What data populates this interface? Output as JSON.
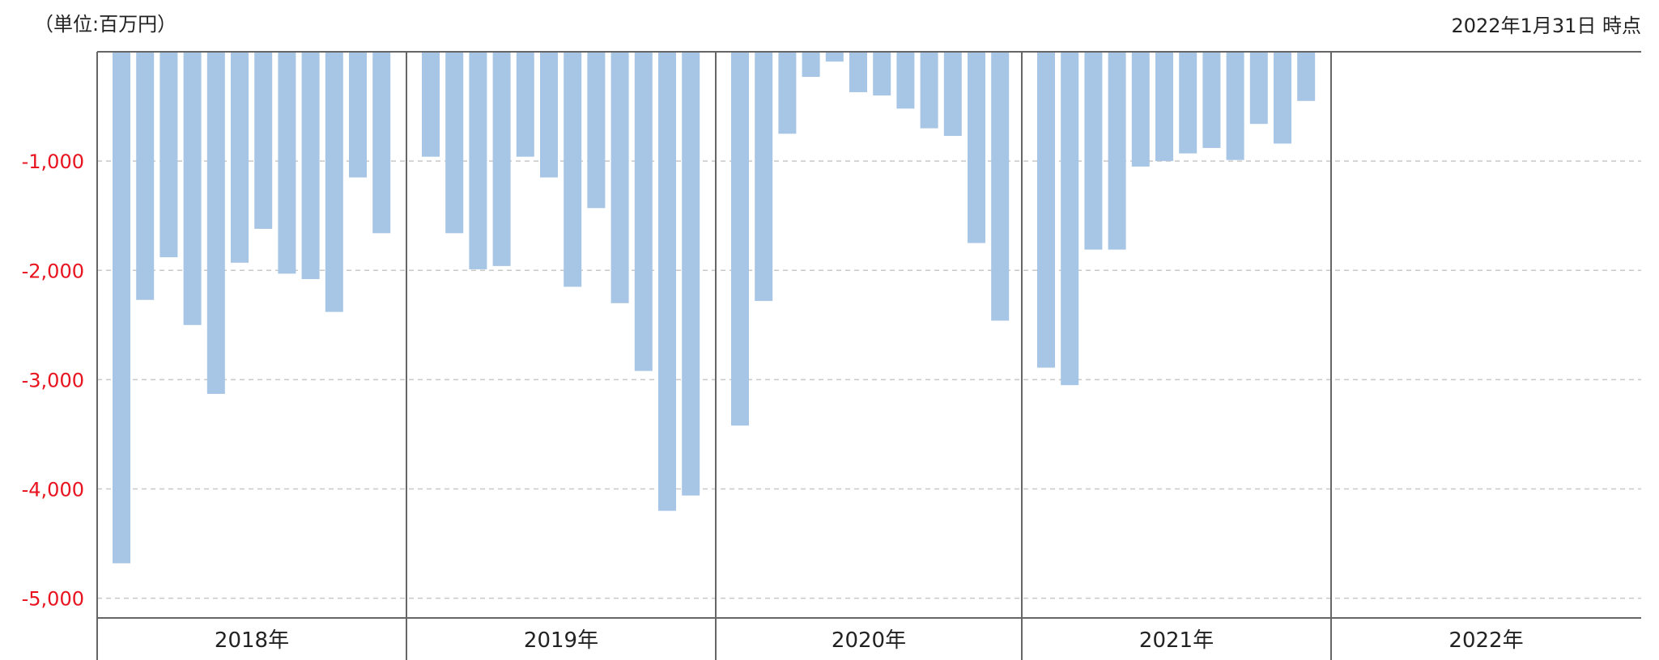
{
  "header": {
    "unit_label": "（単位:百万円）",
    "as_of_label": "2022年1月31日 時点"
  },
  "colors": {
    "bar": "#a7c5e5",
    "negative_tick": "#e8131e",
    "grid": "#c8c8c8",
    "axis": "#666666",
    "text": "#222222"
  },
  "chart_data": {
    "type": "bar",
    "title": "",
    "xlabel": "",
    "ylabel": "",
    "ylim": [
      -5180,
      0
    ],
    "y_ticks": [
      -1000,
      -2000,
      -3000,
      -4000,
      -5000
    ],
    "y_tick_labels": [
      "-1,000",
      "-2,000",
      "-3,000",
      "-4,000",
      "-5,000"
    ],
    "grid": "horizontal dashed",
    "groups": [
      {
        "label": "2018年",
        "values": [
          -4680,
          -2270,
          -1880,
          -2500,
          -3130,
          -1930,
          -1620,
          -2030,
          -2080,
          -2380,
          -1150,
          -1660
        ]
      },
      {
        "label": "2019年",
        "values": [
          -960,
          -1660,
          -1990,
          -1960,
          -960,
          -1150,
          -2150,
          -1430,
          -2300,
          -2920,
          -4200,
          -4060
        ]
      },
      {
        "label": "2020年",
        "values": [
          -3420,
          -2280,
          -750,
          -230,
          -90,
          -370,
          -400,
          -520,
          -700,
          -770,
          -1750,
          -2460
        ]
      },
      {
        "label": "2021年",
        "values": [
          -2890,
          -3050,
          -1810,
          -1810,
          -1050,
          -1000,
          -930,
          -880,
          -990,
          -660,
          -840,
          -450
        ]
      },
      {
        "label": "2022年",
        "values": []
      }
    ]
  }
}
